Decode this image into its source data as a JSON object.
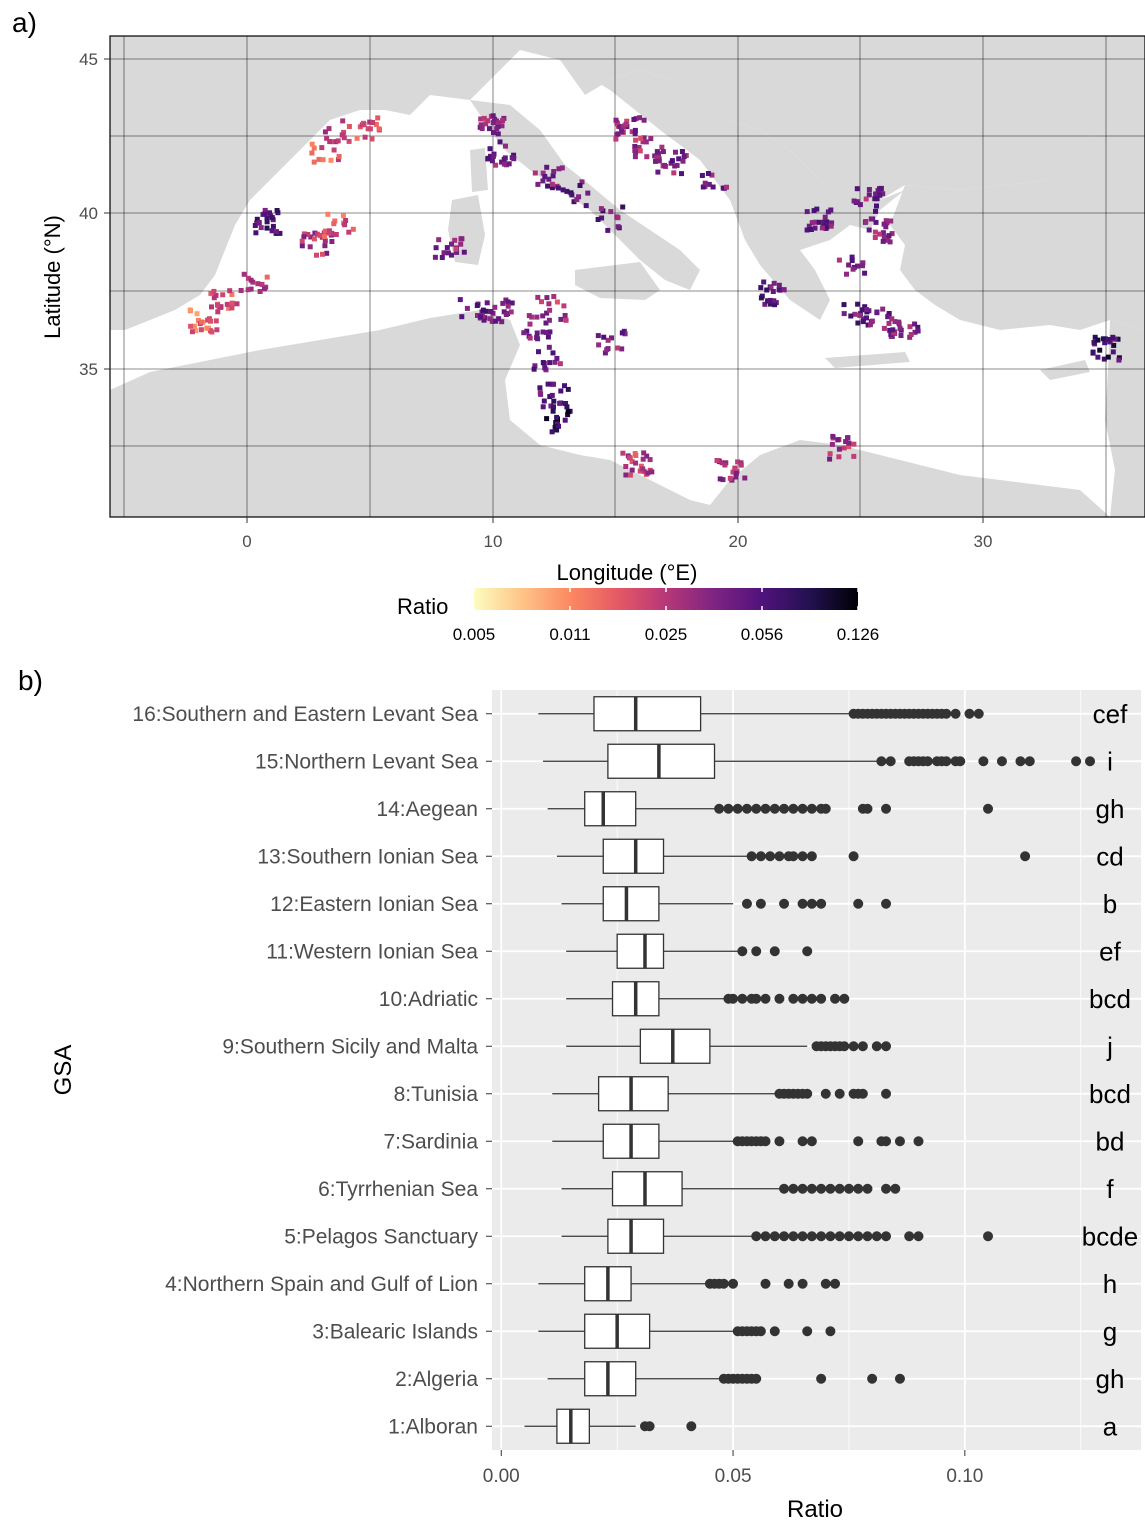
{
  "colors": {
    "land": "#d9d9d9",
    "panel_grey": "#ebebeb",
    "box_fill": "#ffffff",
    "box_stroke": "#333333",
    "outlier": "#333333",
    "palette": [
      "#fcfdbf",
      "#fec488",
      "#fc8961",
      "#e55964",
      "#b73779",
      "#7e2482",
      "#51127c",
      "#221150",
      "#000004"
    ]
  },
  "chart_data": [
    {
      "type": "heatmap",
      "panel_label": "a)",
      "title": "",
      "xlabel": "Longitude (°E)",
      "ylabel": "Latitude (°N)",
      "xlim": [
        -5.5,
        36.5
      ],
      "ylim": [
        30.5,
        46
      ],
      "x_ticks": [
        0,
        10,
        20,
        30
      ],
      "y_ticks": [
        35,
        40,
        45
      ],
      "x_tick_labels": [
        "0",
        "10",
        "20",
        "30"
      ],
      "y_tick_labels": [
        "35",
        "40",
        "45"
      ],
      "grid": true,
      "legend": {
        "title": "Ratio",
        "position": "bottom",
        "scale": "log",
        "colormap": "magma (reversed)",
        "range": [
          0.005,
          0.126
        ],
        "breaks": [
          0.005,
          0.011,
          0.025,
          0.056,
          0.126
        ],
        "break_labels": [
          "0.005",
          "0.011",
          "0.025",
          "0.056",
          "0.126"
        ]
      },
      "clusters": [
        {
          "lon": 3.6,
          "lat": 43.0,
          "value": 0.022
        },
        {
          "lon": 4.8,
          "lat": 43.1,
          "value": 0.02
        },
        {
          "lon": 3.2,
          "lat": 42.4,
          "value": 0.018
        },
        {
          "lon": 0.7,
          "lat": 40.1,
          "value": 0.055
        },
        {
          "lon": 2.8,
          "lat": 39.4,
          "value": 0.03
        },
        {
          "lon": 0.2,
          "lat": 38.2,
          "value": 0.022
        },
        {
          "lon": -0.9,
          "lat": 37.5,
          "value": 0.018
        },
        {
          "lon": -1.8,
          "lat": 36.9,
          "value": 0.015
        },
        {
          "lon": 3.7,
          "lat": 40.0,
          "value": 0.018
        },
        {
          "lon": 10.0,
          "lat": 43.2,
          "value": 0.035
        },
        {
          "lon": 10.3,
          "lat": 42.3,
          "value": 0.04
        },
        {
          "lon": 12.2,
          "lat": 41.5,
          "value": 0.045
        },
        {
          "lon": 13.2,
          "lat": 41.0,
          "value": 0.05
        },
        {
          "lon": 14.8,
          "lat": 40.2,
          "value": 0.05
        },
        {
          "lon": 8.2,
          "lat": 39.3,
          "value": 0.035
        },
        {
          "lon": 15.5,
          "lat": 43.1,
          "value": 0.035
        },
        {
          "lon": 16.3,
          "lat": 42.4,
          "value": 0.03
        },
        {
          "lon": 17.2,
          "lat": 42.0,
          "value": 0.04
        },
        {
          "lon": 19.0,
          "lat": 41.3,
          "value": 0.04
        },
        {
          "lon": 11.8,
          "lat": 36.7,
          "value": 0.04
        },
        {
          "lon": 12.2,
          "lat": 35.7,
          "value": 0.042
        },
        {
          "lon": 12.4,
          "lat": 34.5,
          "value": 0.055
        },
        {
          "lon": 12.6,
          "lat": 33.7,
          "value": 0.085
        },
        {
          "lon": 9.2,
          "lat": 37.3,
          "value": 0.045
        },
        {
          "lon": 10.3,
          "lat": 37.2,
          "value": 0.035
        },
        {
          "lon": 12.3,
          "lat": 37.3,
          "value": 0.03
        },
        {
          "lon": 14.8,
          "lat": 36.2,
          "value": 0.04
        },
        {
          "lon": 15.8,
          "lat": 32.3,
          "value": 0.025
        },
        {
          "lon": 19.6,
          "lat": 32.1,
          "value": 0.03
        },
        {
          "lon": 24.0,
          "lat": 32.8,
          "value": 0.03
        },
        {
          "lon": 21.2,
          "lat": 37.8,
          "value": 0.05
        },
        {
          "lon": 23.2,
          "lat": 40.2,
          "value": 0.045
        },
        {
          "lon": 25.2,
          "lat": 40.8,
          "value": 0.04
        },
        {
          "lon": 25.6,
          "lat": 39.8,
          "value": 0.035
        },
        {
          "lon": 24.6,
          "lat": 38.6,
          "value": 0.04
        },
        {
          "lon": 24.7,
          "lat": 37.2,
          "value": 0.05
        },
        {
          "lon": 25.5,
          "lat": 36.9,
          "value": 0.045
        },
        {
          "lon": 26.6,
          "lat": 36.7,
          "value": 0.04
        },
        {
          "lon": 34.8,
          "lat": 36.0,
          "value": 0.07
        }
      ]
    },
    {
      "type": "box",
      "panel_label": "b)",
      "title": "",
      "xlabel": "Ratio",
      "ylabel": "GSA",
      "xlim": [
        -0.002,
        0.138
      ],
      "x_ticks": [
        0.0,
        0.05,
        0.1
      ],
      "x_tick_labels": [
        "0.00",
        "0.05",
        "0.10"
      ],
      "grid": true,
      "series": [
        {
          "category": "16:Southern and Eastern Levant Sea",
          "letters": "cef",
          "whisker_low": 0.008,
          "q1": 0.02,
          "median": 0.029,
          "q3": 0.043,
          "whisker_high": 0.075,
          "outliers": [
            0.076,
            0.077,
            0.078,
            0.079,
            0.08,
            0.081,
            0.082,
            0.083,
            0.084,
            0.085,
            0.086,
            0.087,
            0.088,
            0.089,
            0.09,
            0.091,
            0.092,
            0.093,
            0.094,
            0.095,
            0.096,
            0.098,
            0.101,
            0.103
          ]
        },
        {
          "category": "15:Northern Levant Sea",
          "letters": "i",
          "whisker_low": 0.009,
          "q1": 0.023,
          "median": 0.034,
          "q3": 0.046,
          "whisker_high": 0.082,
          "outliers": [
            0.082,
            0.084,
            0.088,
            0.089,
            0.09,
            0.091,
            0.092,
            0.094,
            0.095,
            0.096,
            0.098,
            0.099,
            0.104,
            0.108,
            0.112,
            0.114,
            0.124,
            0.127
          ]
        },
        {
          "category": "14:Aegean",
          "letters": "gh",
          "whisker_low": 0.01,
          "q1": 0.018,
          "median": 0.022,
          "q3": 0.029,
          "whisker_high": 0.047,
          "outliers": [
            0.047,
            0.049,
            0.051,
            0.053,
            0.055,
            0.057,
            0.059,
            0.061,
            0.063,
            0.065,
            0.067,
            0.069,
            0.07,
            0.078,
            0.079,
            0.083,
            0.105
          ]
        },
        {
          "category": "13:Southern Ionian Sea",
          "letters": "cd",
          "whisker_low": 0.012,
          "q1": 0.022,
          "median": 0.029,
          "q3": 0.035,
          "whisker_high": 0.053,
          "outliers": [
            0.054,
            0.056,
            0.058,
            0.06,
            0.062,
            0.063,
            0.065,
            0.067,
            0.076,
            0.113
          ]
        },
        {
          "category": "12:Eastern Ionian Sea",
          "letters": "b",
          "whisker_low": 0.013,
          "q1": 0.022,
          "median": 0.027,
          "q3": 0.034,
          "whisker_high": 0.05,
          "outliers": [
            0.053,
            0.056,
            0.061,
            0.065,
            0.067,
            0.069,
            0.077,
            0.083
          ]
        },
        {
          "category": "11:Western Ionian Sea",
          "letters": "ef",
          "whisker_low": 0.014,
          "q1": 0.025,
          "median": 0.031,
          "q3": 0.035,
          "whisker_high": 0.051,
          "outliers": [
            0.052,
            0.055,
            0.059,
            0.066
          ]
        },
        {
          "category": "10:Adriatic",
          "letters": "bcd",
          "whisker_low": 0.014,
          "q1": 0.024,
          "median": 0.029,
          "q3": 0.034,
          "whisker_high": 0.048,
          "outliers": [
            0.049,
            0.05,
            0.052,
            0.054,
            0.055,
            0.057,
            0.06,
            0.063,
            0.065,
            0.067,
            0.069,
            0.072,
            0.074
          ]
        },
        {
          "category": "9:Southern Sicily and Malta",
          "letters": "j",
          "whisker_low": 0.014,
          "q1": 0.03,
          "median": 0.037,
          "q3": 0.045,
          "whisker_high": 0.066,
          "outliers": [
            0.068,
            0.069,
            0.07,
            0.071,
            0.072,
            0.073,
            0.074,
            0.076,
            0.078,
            0.081,
            0.083
          ]
        },
        {
          "category": "8:Tunisia",
          "letters": "bcd",
          "whisker_low": 0.011,
          "q1": 0.021,
          "median": 0.028,
          "q3": 0.036,
          "whisker_high": 0.059,
          "outliers": [
            0.06,
            0.061,
            0.062,
            0.063,
            0.064,
            0.065,
            0.066,
            0.07,
            0.073,
            0.076,
            0.077,
            0.078,
            0.083
          ]
        },
        {
          "category": "7:Sardinia",
          "letters": "bd",
          "whisker_low": 0.011,
          "q1": 0.022,
          "median": 0.028,
          "q3": 0.034,
          "whisker_high": 0.05,
          "outliers": [
            0.051,
            0.052,
            0.053,
            0.054,
            0.055,
            0.056,
            0.057,
            0.06,
            0.065,
            0.067,
            0.077,
            0.082,
            0.083,
            0.086,
            0.09
          ]
        },
        {
          "category": "6:Tyrrhenian Sea",
          "letters": "f",
          "whisker_low": 0.013,
          "q1": 0.024,
          "median": 0.031,
          "q3": 0.039,
          "whisker_high": 0.061,
          "outliers": [
            0.061,
            0.063,
            0.065,
            0.067,
            0.069,
            0.071,
            0.073,
            0.075,
            0.077,
            0.079,
            0.083,
            0.085
          ]
        },
        {
          "category": "5:Pelagos Sanctuary",
          "letters": "bcde",
          "whisker_low": 0.013,
          "q1": 0.023,
          "median": 0.028,
          "q3": 0.035,
          "whisker_high": 0.054,
          "outliers": [
            0.055,
            0.057,
            0.059,
            0.061,
            0.063,
            0.065,
            0.067,
            0.069,
            0.071,
            0.073,
            0.075,
            0.077,
            0.079,
            0.081,
            0.083,
            0.088,
            0.09,
            0.105
          ]
        },
        {
          "category": "4:Northern Spain and Gulf of Lion",
          "letters": "h",
          "whisker_low": 0.008,
          "q1": 0.018,
          "median": 0.023,
          "q3": 0.028,
          "whisker_high": 0.044,
          "outliers": [
            0.045,
            0.046,
            0.047,
            0.048,
            0.05,
            0.057,
            0.062,
            0.065,
            0.07,
            0.072
          ]
        },
        {
          "category": "3:Balearic Islands",
          "letters": "g",
          "whisker_low": 0.008,
          "q1": 0.018,
          "median": 0.025,
          "q3": 0.032,
          "whisker_high": 0.05,
          "outliers": [
            0.051,
            0.052,
            0.053,
            0.054,
            0.055,
            0.056,
            0.059,
            0.066,
            0.071
          ]
        },
        {
          "category": "2:Algeria",
          "letters": "gh",
          "whisker_low": 0.01,
          "q1": 0.018,
          "median": 0.023,
          "q3": 0.029,
          "whisker_high": 0.047,
          "outliers": [
            0.048,
            0.049,
            0.05,
            0.051,
            0.052,
            0.053,
            0.054,
            0.055,
            0.069,
            0.08,
            0.086
          ]
        },
        {
          "category": "1:Alboran",
          "letters": "a",
          "whisker_low": 0.005,
          "q1": 0.012,
          "median": 0.015,
          "q3": 0.019,
          "whisker_high": 0.029,
          "outliers": [
            0.031,
            0.032,
            0.041
          ]
        }
      ]
    }
  ]
}
